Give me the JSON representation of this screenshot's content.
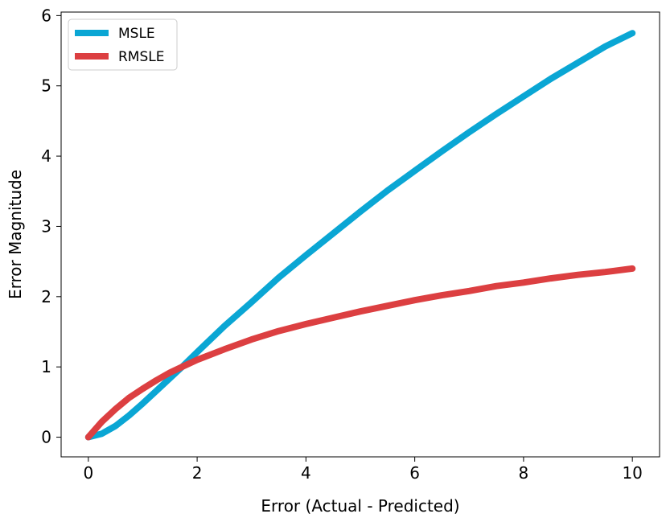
{
  "chart_data": {
    "type": "line",
    "title": "",
    "xlabel": "Error (Actual - Predicted)",
    "ylabel": "Error Magnitude",
    "xlim": [
      -0.5,
      10.5
    ],
    "ylim": [
      -0.28,
      6.05
    ],
    "xticks": [
      0,
      2,
      4,
      6,
      8,
      10
    ],
    "yticks": [
      0,
      1,
      2,
      3,
      4,
      5,
      6
    ],
    "grid": false,
    "legend_position": "top-left",
    "series": [
      {
        "name": "MSLE",
        "color": "#0aa6d4",
        "x": [
          0,
          0.25,
          0.5,
          0.75,
          1,
          1.25,
          1.5,
          1.75,
          2,
          2.5,
          3,
          3.5,
          4,
          4.5,
          5,
          5.5,
          6,
          6.5,
          7,
          7.5,
          8,
          8.5,
          9,
          9.5,
          10
        ],
        "y": [
          0,
          0.05,
          0.16,
          0.31,
          0.48,
          0.66,
          0.84,
          1.02,
          1.21,
          1.58,
          1.92,
          2.27,
          2.59,
          2.9,
          3.21,
          3.51,
          3.79,
          4.07,
          4.34,
          4.6,
          4.85,
          5.1,
          5.33,
          5.56,
          5.75
        ]
      },
      {
        "name": "RMSLE",
        "color": "#dc3f41",
        "x": [
          0,
          0.25,
          0.5,
          0.75,
          1,
          1.25,
          1.5,
          1.75,
          2,
          2.5,
          3,
          3.5,
          4,
          4.5,
          5,
          5.5,
          6,
          6.5,
          7,
          7.5,
          8,
          8.5,
          9,
          9.5,
          10
        ],
        "y": [
          0,
          0.22,
          0.4,
          0.56,
          0.69,
          0.81,
          0.92,
          1.01,
          1.1,
          1.25,
          1.39,
          1.51,
          1.61,
          1.7,
          1.79,
          1.87,
          1.95,
          2.02,
          2.08,
          2.15,
          2.2,
          2.26,
          2.31,
          2.35,
          2.4
        ]
      }
    ]
  }
}
